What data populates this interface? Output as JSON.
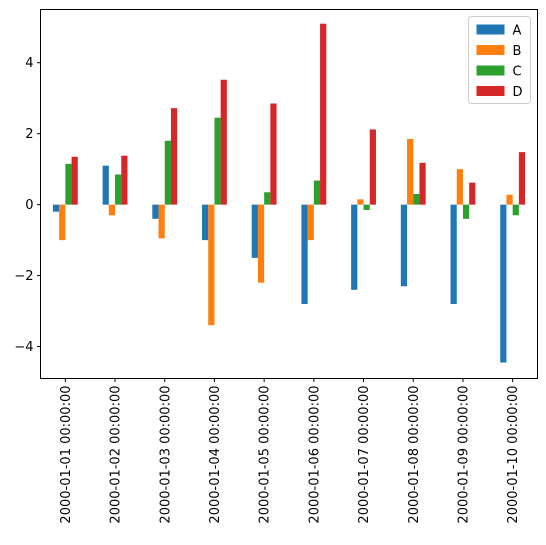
{
  "chart_data": {
    "type": "bar",
    "categories": [
      "2000-01-01 00:00:00",
      "2000-01-02 00:00:00",
      "2000-01-03 00:00:00",
      "2000-01-04 00:00:00",
      "2000-01-05 00:00:00",
      "2000-01-06 00:00:00",
      "2000-01-07 00:00:00",
      "2000-01-08 00:00:00",
      "2000-01-09 00:00:00",
      "2000-01-10 00:00:00"
    ],
    "series": [
      {
        "name": "A",
        "color": "#1f77b4",
        "values": [
          -0.2,
          1.1,
          -0.4,
          -1.0,
          -1.5,
          -2.8,
          -2.4,
          -2.3,
          -2.8,
          -4.45
        ]
      },
      {
        "name": "B",
        "color": "#ff7f0e",
        "values": [
          -1.0,
          -0.3,
          -0.95,
          -3.4,
          -2.2,
          -1.0,
          0.15,
          1.85,
          1.0,
          0.28
        ]
      },
      {
        "name": "C",
        "color": "#2ca02c",
        "values": [
          1.15,
          0.85,
          1.8,
          2.45,
          0.35,
          0.68,
          -0.15,
          0.3,
          -0.4,
          -0.3
        ]
      },
      {
        "name": "D",
        "color": "#d62728",
        "values": [
          1.35,
          1.38,
          2.72,
          3.52,
          2.85,
          5.1,
          2.12,
          1.18,
          0.62,
          1.48
        ]
      }
    ],
    "title": "",
    "xlabel": "",
    "ylabel": "",
    "ylim": [
      -4.9,
      5.5
    ],
    "yticks": [
      -4,
      -2,
      0,
      2,
      4
    ],
    "ytick_labels": [
      "−4",
      "−2",
      "0",
      "2",
      "4"
    ],
    "grid": false,
    "legend_position": "top-right"
  }
}
